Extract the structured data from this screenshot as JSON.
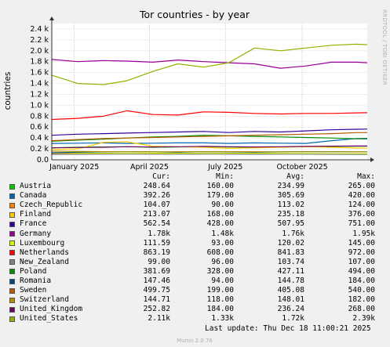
{
  "chart_data": {
    "type": "line",
    "title": "Tor countries - by year",
    "ylabel": "countries",
    "side_label": "RRDTOOL / TOBI OETIKER",
    "footer": "Munin 2.0.76",
    "ylim": [
      0,
      2500
    ],
    "y_ticks": [
      {
        "v": 0,
        "label": "0.0"
      },
      {
        "v": 200,
        "label": "0.2 k"
      },
      {
        "v": 400,
        "label": "0.4 k"
      },
      {
        "v": 600,
        "label": "0.6 k"
      },
      {
        "v": 800,
        "label": "0.8 k"
      },
      {
        "v": 1000,
        "label": "1.0 k"
      },
      {
        "v": 1200,
        "label": "1.2 k"
      },
      {
        "v": 1400,
        "label": "1.4 k"
      },
      {
        "v": 1600,
        "label": "1.6 k"
      },
      {
        "v": 1800,
        "label": "1.8 k"
      },
      {
        "v": 2000,
        "label": "2.0 k"
      },
      {
        "v": 2200,
        "label": "2.2 k"
      },
      {
        "v": 2400,
        "label": "2.4 k"
      }
    ],
    "x_range": [
      "2024-12-05",
      "2025-12-18"
    ],
    "x_ticks": [
      {
        "date": "2025-01-01",
        "label": "January 2025"
      },
      {
        "date": "2025-04-01",
        "label": "April 2025"
      },
      {
        "date": "2025-07-01",
        "label": "July 2025"
      },
      {
        "date": "2025-10-01",
        "label": "October 2025"
      }
    ],
    "x": [
      "2024-12-05",
      "2025-01-05",
      "2025-02-05",
      "2025-03-05",
      "2025-04-05",
      "2025-05-05",
      "2025-06-05",
      "2025-07-05",
      "2025-08-05",
      "2025-09-05",
      "2025-10-05",
      "2025-11-05",
      "2025-12-05",
      "2025-12-18"
    ],
    "series": [
      {
        "name": "Austria",
        "color": "#00cc00",
        "values": [
          220,
          230,
          235,
          240,
          230,
          235,
          240,
          235,
          230,
          235,
          240,
          245,
          250,
          249
        ]
      },
      {
        "name": "Canada",
        "color": "#0066b3",
        "values": [
          300,
          305,
          310,
          300,
          305,
          310,
          310,
          300,
          310,
          305,
          300,
          350,
          390,
          392
        ]
      },
      {
        "name": "Czech_Republic",
        "color": "#ff8000",
        "values": [
          110,
          115,
          115,
          110,
          115,
          115,
          112,
          115,
          110,
          112,
          110,
          105,
          105,
          104
        ]
      },
      {
        "name": "Finland",
        "color": "#ffcc00",
        "values": [
          190,
          200,
          320,
          330,
          250,
          240,
          230,
          210,
          220,
          230,
          240,
          230,
          215,
          213
        ]
      },
      {
        "name": "France",
        "color": "#330099",
        "values": [
          450,
          470,
          480,
          490,
          500,
          510,
          520,
          500,
          520,
          510,
          530,
          550,
          560,
          563
        ]
      },
      {
        "name": "Germany",
        "color": "#990099",
        "values": [
          1840,
          1800,
          1820,
          1810,
          1790,
          1830,
          1800,
          1780,
          1760,
          1680,
          1720,
          1790,
          1790,
          1780
        ]
      },
      {
        "name": "Luxembourg",
        "color": "#ccff00",
        "values": [
          130,
          125,
          120,
          118,
          120,
          122,
          118,
          120,
          120,
          118,
          115,
          112,
          112,
          112
        ]
      },
      {
        "name": "Netherlands",
        "color": "#ff0000",
        "values": [
          740,
          760,
          800,
          900,
          830,
          820,
          880,
          870,
          850,
          840,
          850,
          850,
          860,
          863
        ]
      },
      {
        "name": "New_Zealand",
        "color": "#808080",
        "values": [
          100,
          102,
          104,
          105,
          103,
          104,
          105,
          104,
          102,
          103,
          104,
          101,
          99,
          99
        ]
      },
      {
        "name": "Poland",
        "color": "#008f00",
        "values": [
          340,
          360,
          380,
          400,
          420,
          430,
          450,
          440,
          430,
          420,
          410,
          400,
          385,
          382
        ]
      },
      {
        "name": "Romania",
        "color": "#00487d",
        "values": [
          130,
          140,
          145,
          150,
          145,
          140,
          150,
          145,
          140,
          145,
          150,
          148,
          147,
          147
        ]
      },
      {
        "name": "Sweden",
        "color": "#b35a00",
        "values": [
          350,
          370,
          390,
          400,
          410,
          420,
          430,
          440,
          450,
          460,
          470,
          480,
          498,
          500
        ]
      },
      {
        "name": "Switzerland",
        "color": "#b38f00",
        "values": [
          160,
          155,
          150,
          150,
          145,
          148,
          150,
          150,
          148,
          146,
          148,
          147,
          145,
          145
        ]
      },
      {
        "name": "United_Kingdom",
        "color": "#6b006b",
        "values": [
          220,
          225,
          230,
          240,
          235,
          240,
          245,
          240,
          235,
          240,
          245,
          250,
          253,
          253
        ]
      },
      {
        "name": "United_States",
        "color": "#8fb300",
        "values": [
          1550,
          1400,
          1380,
          1450,
          1620,
          1760,
          1700,
          1780,
          2050,
          2000,
          2050,
          2100,
          2120,
          2110
        ]
      }
    ],
    "legend_header": [
      "Cur:",
      "Min:",
      "Avg:",
      "Max:"
    ],
    "legend": [
      [
        "Austria",
        "248.64",
        "160.00",
        "234.99",
        "265.00"
      ],
      [
        "Canada",
        "392.26",
        "179.00",
        "305.69",
        "420.00"
      ],
      [
        "Czech_Republic",
        "104.07",
        "90.00",
        "113.02",
        "124.00"
      ],
      [
        "Finland",
        "213.07",
        "168.00",
        "235.18",
        "376.00"
      ],
      [
        "France",
        "562.54",
        "428.00",
        "507.95",
        "751.00"
      ],
      [
        "Germany",
        "1.78k",
        "1.48k",
        "1.76k",
        "1.95k"
      ],
      [
        "Luxembourg",
        "111.59",
        "93.00",
        "120.02",
        "145.00"
      ],
      [
        "Netherlands",
        "863.19",
        "608.00",
        "841.83",
        "972.00"
      ],
      [
        "New_Zealand",
        "99.00",
        "96.00",
        "103.74",
        "107.00"
      ],
      [
        "Poland",
        "381.69",
        "328.00",
        "427.11",
        "494.00"
      ],
      [
        "Romania",
        "147.46",
        "94.00",
        "144.78",
        "184.00"
      ],
      [
        "Sweden",
        "499.75",
        "199.00",
        "405.08",
        "540.00"
      ],
      [
        "Switzerland",
        "144.71",
        "118.00",
        "148.01",
        "182.00"
      ],
      [
        "United_Kingdom",
        "252.82",
        "184.00",
        "236.24",
        "268.00"
      ],
      [
        "United_States",
        "2.11k",
        "1.33k",
        "1.72k",
        "2.39k"
      ]
    ],
    "last_update": "Last update: Thu Dec 18 11:00:21 2025",
    "grid": true
  }
}
